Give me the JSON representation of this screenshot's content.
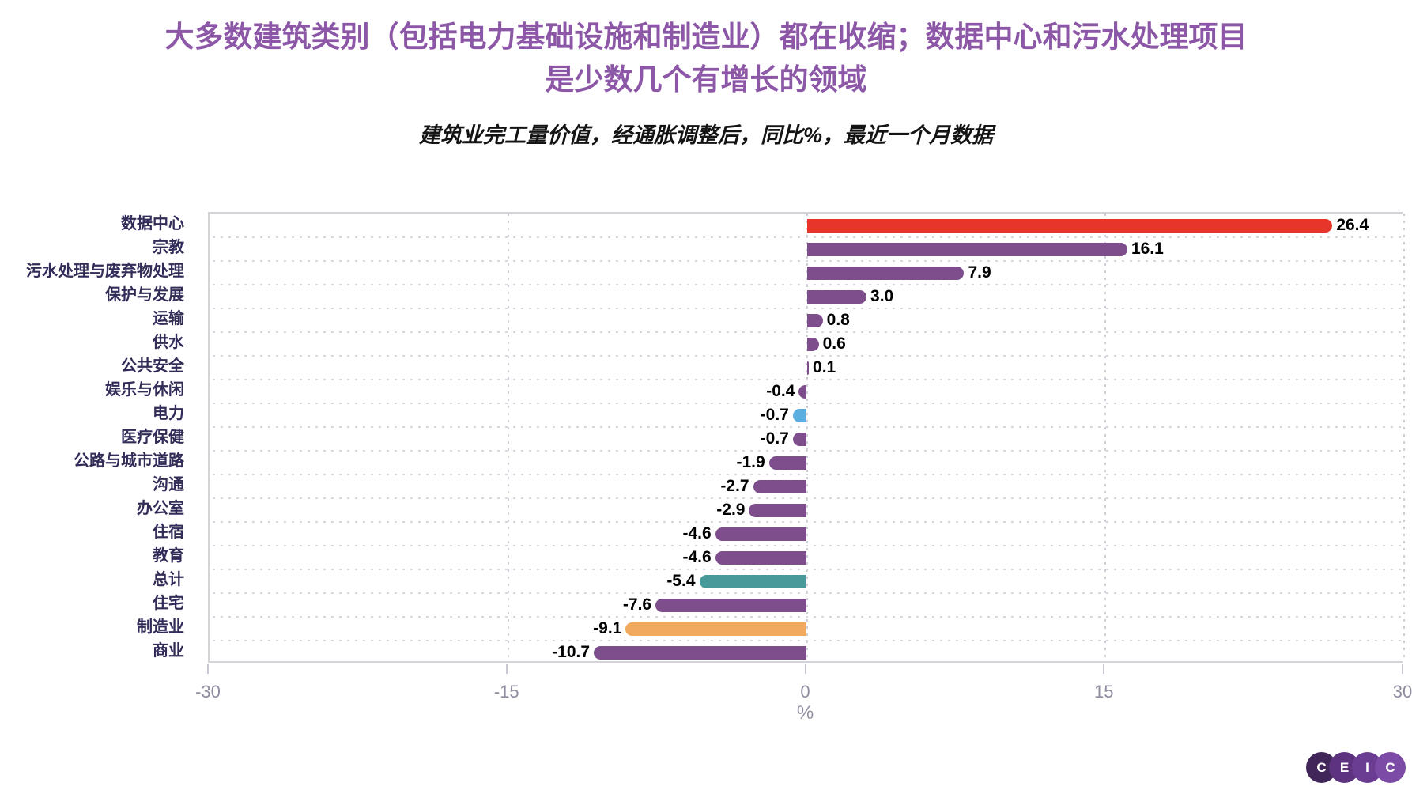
{
  "header": {
    "title_line1": "大多数建筑类别（包括电力基础设施和制造业）都在收缩；数据中心和污水处理项目",
    "title_line2": "是少数几个有增长的领域",
    "subtitle": "建筑业完工量价值，经通胀调整后，同比%，最近一个月数据"
  },
  "chart_data": {
    "type": "bar",
    "orientation": "horizontal",
    "title": "大多数建筑类别（包括电力基础设施和制造业）都在收缩；数据中心和污水处理项目是少数几个有增长的领域",
    "subtitle": "建筑业完工量价值，经通胀调整后，同比%，最近一个月数据",
    "xlabel": "%",
    "xlim": [
      -30,
      30
    ],
    "xticks": [
      -30,
      -15,
      0,
      15,
      30
    ],
    "xtick_labels": [
      "-30",
      "-15",
      "0",
      "15",
      "30"
    ],
    "grid": "dotted",
    "legend": "none",
    "categories": [
      "数据中心",
      "宗教",
      "污水处理与废弃物处理",
      "保护与发展",
      "运输",
      "供水",
      "公共安全",
      "娱乐与休闲",
      "电力",
      "医疗保健",
      "公路与城市道路",
      "沟通",
      "办公室",
      "住宿",
      "教育",
      "总计",
      "住宅",
      "制造业",
      "商业"
    ],
    "values": [
      26.4,
      16.1,
      7.9,
      3.0,
      0.8,
      0.6,
      0.1,
      -0.4,
      -0.7,
      -0.7,
      -1.9,
      -2.7,
      -2.9,
      -4.6,
      -4.6,
      -5.4,
      -7.6,
      -9.1,
      -10.7
    ],
    "value_labels": [
      "26.4",
      "16.1",
      "7.9",
      "3.0",
      "0.8",
      "0.6",
      "0.1",
      "-0.4",
      "-0.7",
      "-0.7",
      "-1.9",
      "-2.7",
      "-2.9",
      "-4.6",
      "-4.6",
      "-5.4",
      "-7.6",
      "-9.1",
      "-10.7"
    ],
    "bar_colors": [
      "#E8352B",
      "#7D4E8B",
      "#7D4E8B",
      "#7D4E8B",
      "#7D4E8B",
      "#7D4E8B",
      "#7D4E8B",
      "#7D4E8B",
      "#5BAEE0",
      "#7D4E8B",
      "#7D4E8B",
      "#7D4E8B",
      "#7D4E8B",
      "#7D4E8B",
      "#7D4E8B",
      "#479A99",
      "#7D4E8B",
      "#F0A95D",
      "#7D4E8B"
    ]
  },
  "colors": {
    "title": "#8C57A6",
    "category_label": "#312C58",
    "value_label": "#000000",
    "axis_tick_label": "#8F8DA0",
    "grid": "#D4D3DA",
    "bar_default_purple": "#7D4E8B",
    "bar_red": "#E8352B",
    "bar_blue": "#5BAEE0",
    "bar_teal": "#479A99",
    "bar_orange": "#F0A95D"
  },
  "logo": {
    "name": "CEIC",
    "letters": [
      "C",
      "E",
      "I",
      "C"
    ],
    "circle_colors": [
      "#412759",
      "#5D3380",
      "#6B3D92",
      "#7C4BA5"
    ]
  }
}
